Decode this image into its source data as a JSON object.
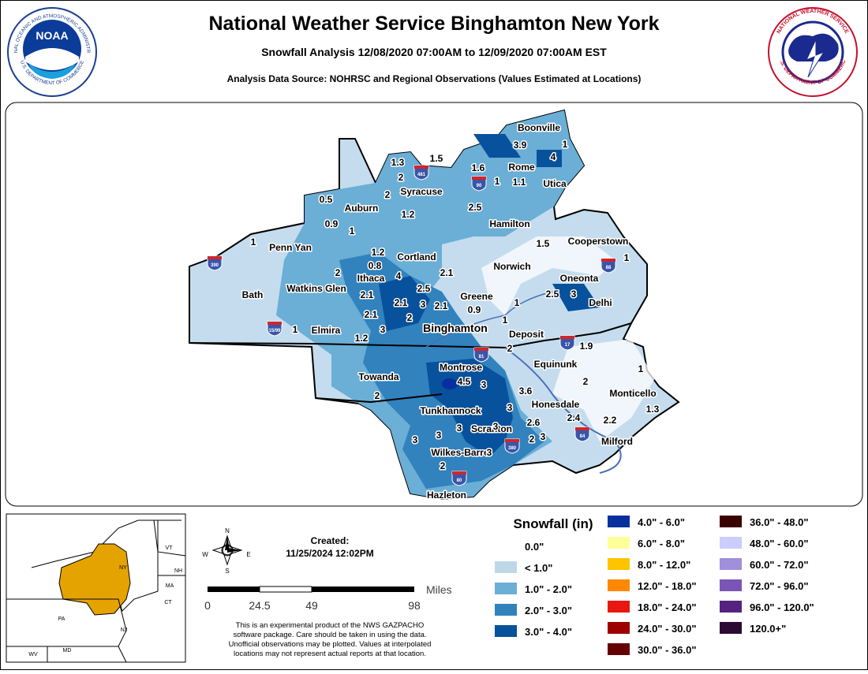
{
  "header": {
    "title": "National Weather Service Binghamton New York",
    "subtitle": "Snowfall Analysis 12/08/2020 07:00AM to 12/09/2020 07:00AM EST",
    "source": "Analysis Data Source: NOHRSC and Regional Observations (Values Estimated at Locations)"
  },
  "logos": {
    "noaa": "NOAA",
    "noaa_ring_top": "NATIONAL OCEANIC AND ATMOSPHERIC ADMINISTRATION",
    "noaa_ring_bottom": "U.S. DEPARTMENT OF COMMERCE",
    "nws_ring_top": "NATIONAL WEATHER SERVICE",
    "nws_ring_bottom": "U.S. DEPARTMENT OF COMMERCE"
  },
  "map": {
    "cities": [
      "Boonville",
      "Rome",
      "Utica",
      "Syracuse",
      "Auburn",
      "Hamilton",
      "Cooperstown",
      "Penn Yan",
      "Cortland",
      "Norwich",
      "Oneonta",
      "Ithaca",
      "Watkins Glen",
      "Bath",
      "Greene",
      "Delhi",
      "Elmira",
      "Binghamton",
      "Deposit",
      "Equinunk",
      "Montrose",
      "Monticello",
      "Towanda",
      "Honesdale",
      "Tunkhannock",
      "Scranton",
      "Milford",
      "Wilkes-Barre",
      "Hazleton"
    ],
    "values": [
      "3.9",
      "1",
      "4",
      "1.3",
      "1.5",
      "2",
      "1.6",
      "1",
      "1.1",
      "2",
      "0.5",
      "2.5",
      "1.2",
      "0.9",
      "1",
      "1",
      "1.5",
      "1",
      "1.2",
      "0.8",
      "2",
      "4",
      "2.1",
      "2.5",
      "2.1",
      "2.1",
      "3",
      "2.1",
      "0.9",
      "1",
      "2.5",
      "3",
      "2.1",
      "2",
      "3",
      "1",
      "1",
      "1.2",
      "2",
      "1.9",
      "1",
      "2",
      "4.5",
      "3",
      "3.6",
      "2",
      "3",
      "1.3",
      "2.6",
      "2.4",
      "2.2",
      "3",
      "3",
      "3",
      "3",
      "2",
      "3",
      "3",
      "2"
    ],
    "shields": [
      "390",
      "481",
      "90",
      "88",
      "15/99",
      "81",
      "17",
      "84",
      "380",
      "80"
    ]
  },
  "legend": {
    "title": "Snowfall (in)",
    "items": [
      {
        "label": "0.0\"",
        "color": "#ffffff"
      },
      {
        "label": "< 1.0\"",
        "color": "#bdd7e7"
      },
      {
        "label": "1.0\" - 2.0\"",
        "color": "#6baed6"
      },
      {
        "label": "2.0\" - 3.0\"",
        "color": "#3182bd"
      },
      {
        "label": "3.0\" - 4.0\"",
        "color": "#08519c"
      },
      {
        "label": "4.0\" - 6.0\"",
        "color": "#082f9e"
      },
      {
        "label": "6.0\" - 8.0\"",
        "color": "#ffff99"
      },
      {
        "label": "8.0\" - 12.0\"",
        "color": "#ffc400"
      },
      {
        "label": "12.0\" - 18.0\"",
        "color": "#ff8800"
      },
      {
        "label": "18.0\" - 24.0\"",
        "color": "#e8170f"
      },
      {
        "label": "24.0\" - 30.0\"",
        "color": "#9e0000"
      },
      {
        "label": "30.0\" - 36.0\"",
        "color": "#660000"
      },
      {
        "label": "36.0\" - 48.0\"",
        "color": "#3b0000"
      },
      {
        "label": "48.0\" - 60.0\"",
        "color": "#ccccff"
      },
      {
        "label": "60.0\" - 72.0\"",
        "color": "#9f8fdc"
      },
      {
        "label": "72.0\" - 96.0\"",
        "color": "#7b55b5"
      },
      {
        "label": "96.0\" - 120.0\"",
        "color": "#55237f"
      },
      {
        "label": "120.0+\"",
        "color": "#2b0a33"
      }
    ]
  },
  "created": {
    "label": "Created:",
    "date": "11/25/2024 12:02PM"
  },
  "scale": {
    "unit": "Miles",
    "ticks": [
      "0",
      "24.5",
      "49",
      "98"
    ]
  },
  "compass": {
    "n": "N",
    "s": "S",
    "e": "E",
    "w": "W"
  },
  "disclaimer": [
    "This is an experimental product of the NWS GAZPACHO",
    "software package. Care should be taken in using the data.",
    "Unofficial observations may be plotted. Values at interpolated",
    "locations may not represent actual reports at that location."
  ],
  "inset": {
    "labels": [
      "NY",
      "VT",
      "NH",
      "MA",
      "CT",
      "PA",
      "NJ",
      "WV",
      "MD"
    ]
  }
}
